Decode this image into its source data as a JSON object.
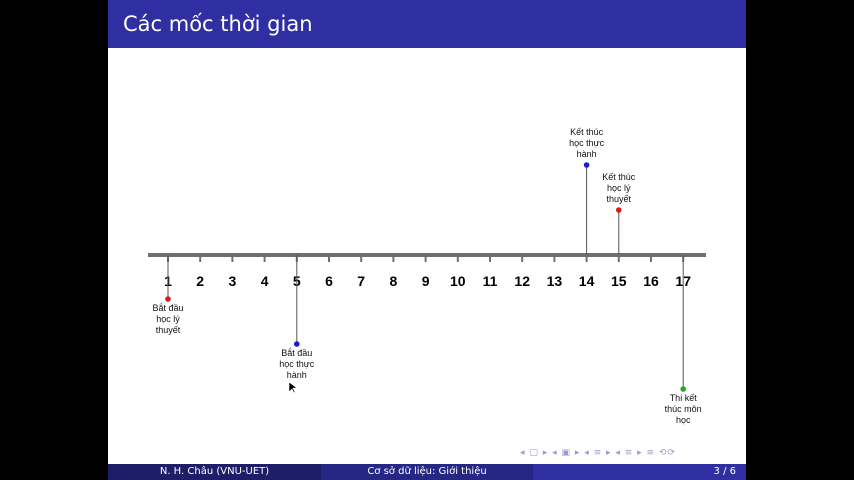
{
  "slide": {
    "title": "Các mốc thời gian"
  },
  "timeline": {
    "ticks": [
      "1",
      "2",
      "3",
      "4",
      "5",
      "6",
      "7",
      "8",
      "9",
      "10",
      "11",
      "12",
      "13",
      "14",
      "15",
      "16",
      "17"
    ],
    "events": [
      {
        "id": "start-theory",
        "tick": "1",
        "side": "below",
        "lines": [
          "Bắt đầu",
          "học lý",
          "thuyết"
        ],
        "color": "#d81b1b"
      },
      {
        "id": "start-practice",
        "tick": "5",
        "side": "below",
        "lines": [
          "Bắt đầu",
          "học thực",
          "hành"
        ],
        "color": "#1a1adb"
      },
      {
        "id": "end-practice",
        "tick": "14",
        "side": "above",
        "lines": [
          "Kết thúc",
          "học thực",
          "hành"
        ],
        "color": "#1a1adb"
      },
      {
        "id": "end-theory",
        "tick": "15",
        "side": "above",
        "lines": [
          "Kết thúc",
          "học lý",
          "thuyết"
        ],
        "color": "#d81b1b"
      },
      {
        "id": "final-exam",
        "tick": "17",
        "side": "below",
        "lines": [
          "Thi kết",
          "thúc môn",
          "học"
        ],
        "color": "#1faa1f"
      }
    ]
  },
  "footer": {
    "author": "N. H. Châu  (VNU-UET)",
    "course": "Cơ sở dữ liệu: Giới thiệu",
    "page": "3 / 6"
  },
  "nav": {
    "symbols": "◂ ▢ ▸  ◂ ▣ ▸  ◂ ≡ ▸  ◂ ≡ ▸   ≡   ⟲⟳"
  },
  "colors": {
    "title_bar": "#2f2fa1",
    "axis": "#6f6f6f"
  }
}
